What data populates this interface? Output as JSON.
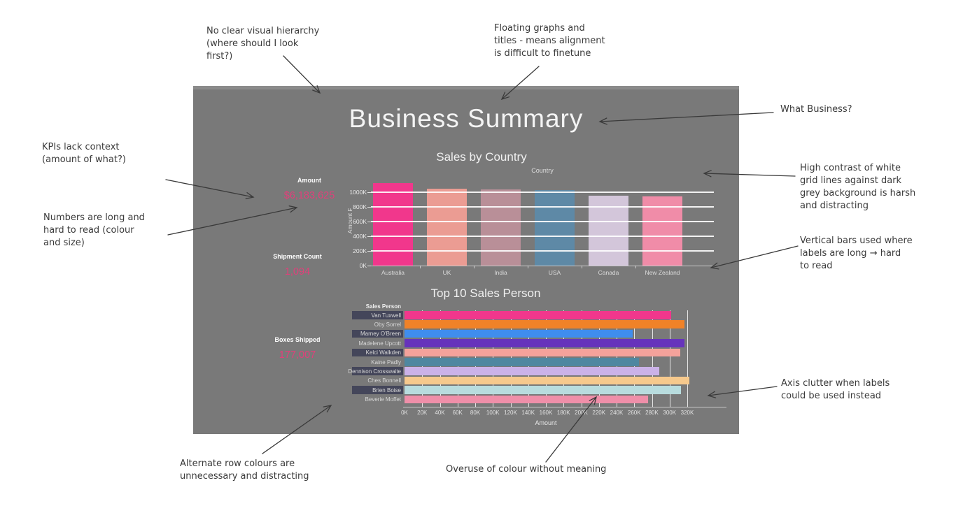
{
  "page": {
    "background": "#ffffff",
    "annotation_ink": "#3a3a3a"
  },
  "dashboard": {
    "title": "Business Summary",
    "background": "#797979",
    "title_color": "#f4f4f4",
    "accent": "#e0407a",
    "kpis": [
      {
        "label": "Amount",
        "value": "$6,183,625"
      },
      {
        "label": "Shipment Count",
        "value": "1,094"
      },
      {
        "label": "Boxes Shipped",
        "value": "177,007"
      }
    ]
  },
  "annotations": [
    {
      "id": "hierarchy",
      "text": "No clear visual hierarchy\n(where should I look\nfirst?)"
    },
    {
      "id": "floating",
      "text": "Floating graphs and\ntitles - means alignment\nis difficult to finetune"
    },
    {
      "id": "what-business",
      "text": "What Business?"
    },
    {
      "id": "grid-contrast",
      "text": "High contrast of white\ngrid lines against dark\ngrey background is harsh\nand distracting"
    },
    {
      "id": "vertical-bars",
      "text": "Vertical bars used where\nlabels are long → hard\nto read"
    },
    {
      "id": "axis-clutter",
      "text": "Axis clutter when labels\ncould be used instead"
    },
    {
      "id": "kpi-context",
      "text": "KPIs lack context\n(amount of what?)"
    },
    {
      "id": "numbers-long",
      "text": "Numbers are long and\nhard to read (colour\nand size)"
    },
    {
      "id": "row-colours",
      "text": "Alternate row colours are\nunnecessary and distracting"
    },
    {
      "id": "colour-overuse",
      "text": "Overuse of colour without meaning"
    }
  ],
  "chart_data": [
    {
      "type": "bar",
      "orientation": "vertical",
      "title": "Sales by Country",
      "xlabel": "Country",
      "ylabel": "Amount ₣",
      "categories": [
        "Australia",
        "UK",
        "India",
        "USA",
        "Canada",
        "New Zealand"
      ],
      "values": [
        1120000,
        1045000,
        1035000,
        1025000,
        955000,
        945000
      ],
      "bar_colors": [
        "#f1378c",
        "#eb9c93",
        "#b98f98",
        "#5e89a6",
        "#d3c6da",
        "#f08ca8"
      ],
      "yticks": [
        "0K",
        "200K",
        "400K",
        "600K",
        "800K",
        "1000K"
      ],
      "ytick_values": [
        0,
        200000,
        400000,
        600000,
        800000,
        1000000
      ],
      "ylim": [
        0,
        1190000
      ],
      "grid": "white horizontal gridlines drawn over bars",
      "legend": "none"
    },
    {
      "type": "bar",
      "orientation": "horizontal",
      "title": "Top 10 Sales Person",
      "xlabel": "Amount",
      "row_header": "Sales Person",
      "categories": [
        "Van Tuxwell",
        "Oby Sorrel",
        "Marney O'Breen",
        "Madelene Upcott",
        "Kelci Walkden",
        "Kaine Padly",
        "Dennison Crosswaite",
        "Ches Bonnell",
        "Brien Boise",
        "Beverie Moffet"
      ],
      "values": [
        302000,
        317000,
        258000,
        317000,
        312000,
        265000,
        288000,
        322000,
        313000,
        276000
      ],
      "bar_colors": [
        "#f1378c",
        "#f08228",
        "#3f8dee",
        "#6633bb",
        "#f4a29b",
        "#4f87a0",
        "#cbb2e8",
        "#f6c98d",
        "#b8dcde",
        "#ef8fa9"
      ],
      "xticks": [
        "0K",
        "20K",
        "40K",
        "60K",
        "80K",
        "100K",
        "120K",
        "140K",
        "160K",
        "180K",
        "200K",
        "220K",
        "240K",
        "260K",
        "280K",
        "300K",
        "320K"
      ],
      "xtick_step": 20000,
      "xlim": [
        0,
        320000
      ],
      "alt_row_band_color": "#44465a",
      "grid": "white vertical gridlines behind bars",
      "legend": "none"
    }
  ]
}
